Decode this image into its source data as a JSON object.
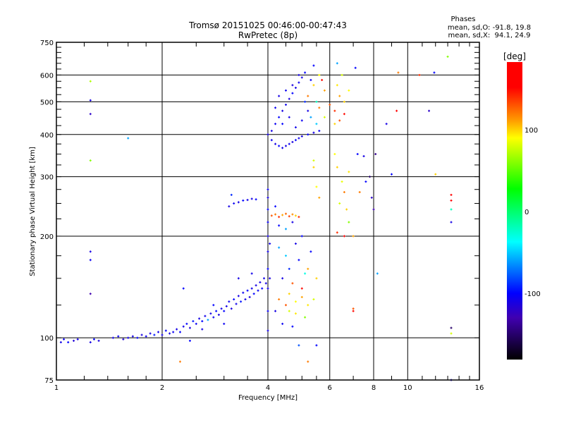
{
  "chart_data": {
    "type": "scatter",
    "title": "Tromsø 20151025 00:46:00-00:47:43",
    "subtitle": "RwPretec (8p)",
    "xlabel": "Frequency [MHz]",
    "ylabel": "Stationary phase Virtual Height [km]",
    "xscale": "log",
    "yscale": "log",
    "xlim": [
      1,
      16
    ],
    "ylim": [
      75,
      750
    ],
    "xticks": [
      "1",
      "2",
      "4",
      "6",
      "8",
      "10",
      "16"
    ],
    "xtick_values": [
      1,
      2,
      4,
      6,
      8,
      10,
      16
    ],
    "yticks": [
      "75",
      "100",
      "200",
      "300",
      "400",
      "500",
      "600",
      "750"
    ],
    "ytick_values": [
      75,
      100,
      200,
      300,
      400,
      500,
      600,
      750
    ],
    "grid_x": [
      2,
      4,
      6,
      8,
      10
    ],
    "grid_y": [
      100,
      200,
      300,
      400,
      500,
      600
    ],
    "grid": true,
    "legend": {
      "title": "Phases",
      "lines": [
        "mean, sd,O: -91.8, 19.8",
        "mean, sd,X:  94.1, 24.9"
      ],
      "placement": "top-right"
    },
    "colorbar": {
      "label": "[deg]",
      "range": [
        -181,
        183
      ],
      "ticks": [
        "100",
        "0",
        "-100"
      ],
      "tick_values": [
        100,
        0,
        -100
      ],
      "stops": [
        {
          "value": 183,
          "color": "#ff0000"
        },
        {
          "value": 152,
          "color": "#ff0000"
        },
        {
          "value": 112,
          "color": "#ff9a00"
        },
        {
          "value": 90,
          "color": "#ffff00"
        },
        {
          "value": 28,
          "color": "#00ff00"
        },
        {
          "value": -37,
          "color": "#00ffff"
        },
        {
          "value": -100,
          "color": "#0000ff"
        },
        {
          "value": -130,
          "color": "#4000b0"
        },
        {
          "value": -181,
          "color": "#000000"
        }
      ]
    },
    "point_fields": [
      "frequency_MHz",
      "height_km",
      "phase_deg"
    ],
    "points": [
      [
        1.03,
        97,
        -110
      ],
      [
        1.05,
        99,
        -105
      ],
      [
        1.08,
        97,
        -100
      ],
      [
        1.12,
        98,
        -115
      ],
      [
        1.15,
        99,
        -108
      ],
      [
        1.25,
        97,
        -110
      ],
      [
        1.28,
        99,
        -100
      ],
      [
        1.32,
        98,
        -112
      ],
      [
        1.45,
        100,
        -110
      ],
      [
        1.5,
        101,
        -105
      ],
      [
        1.55,
        99,
        -115
      ],
      [
        1.6,
        100,
        -108
      ],
      [
        1.65,
        101,
        -110
      ],
      [
        1.7,
        100,
        -100
      ],
      [
        1.75,
        102,
        -112
      ],
      [
        1.8,
        101,
        -105
      ],
      [
        1.85,
        103,
        -110
      ],
      [
        1.9,
        102,
        -95
      ],
      [
        1.95,
        104,
        -108
      ],
      [
        2.0,
        102,
        -110
      ],
      [
        2.05,
        105,
        -100
      ],
      [
        2.1,
        103,
        -112
      ],
      [
        2.15,
        104,
        -105
      ],
      [
        2.2,
        106,
        -110
      ],
      [
        2.25,
        104,
        -100
      ],
      [
        2.3,
        108,
        -108
      ],
      [
        2.35,
        110,
        -100
      ],
      [
        2.4,
        107,
        -112
      ],
      [
        2.45,
        112,
        -95
      ],
      [
        2.5,
        110,
        -105
      ],
      [
        2.55,
        114,
        -110
      ],
      [
        2.6,
        112,
        -100
      ],
      [
        2.65,
        116,
        -108
      ],
      [
        2.7,
        113,
        -60
      ],
      [
        2.75,
        118,
        -110
      ],
      [
        2.8,
        115,
        -105
      ],
      [
        2.85,
        120,
        -100
      ],
      [
        2.9,
        117,
        -112
      ],
      [
        2.95,
        122,
        -108
      ],
      [
        3.0,
        120,
        -100
      ],
      [
        3.05,
        124,
        -110
      ],
      [
        3.1,
        128,
        -105
      ],
      [
        3.15,
        122,
        -112
      ],
      [
        3.2,
        130,
        -100
      ],
      [
        3.25,
        126,
        -108
      ],
      [
        3.3,
        133,
        -110
      ],
      [
        3.35,
        128,
        -95
      ],
      [
        3.4,
        136,
        -105
      ],
      [
        3.45,
        130,
        -110
      ],
      [
        3.5,
        138,
        -100
      ],
      [
        3.55,
        132,
        -112
      ],
      [
        3.6,
        140,
        -108
      ],
      [
        3.65,
        135,
        -100
      ],
      [
        3.7,
        143,
        -110
      ],
      [
        3.75,
        138,
        -105
      ],
      [
        3.8,
        146,
        -110
      ],
      [
        3.85,
        140,
        -100
      ],
      [
        3.9,
        150,
        -108
      ],
      [
        3.95,
        145,
        -110
      ],
      [
        2.4,
        98,
        -100
      ],
      [
        2.6,
        106,
        -110
      ],
      [
        2.8,
        125,
        -100
      ],
      [
        3.0,
        110,
        -105
      ],
      [
        3.3,
        150,
        -110
      ],
      [
        3.6,
        155,
        -108
      ],
      [
        2.3,
        140,
        -100
      ],
      [
        2.25,
        85,
        120
      ],
      [
        1.25,
        180,
        -110
      ],
      [
        1.25,
        170,
        -105
      ],
      [
        1.25,
        135,
        -130
      ],
      [
        1.25,
        575,
        70
      ],
      [
        1.25,
        505,
        -110
      ],
      [
        1.25,
        460,
        -120
      ],
      [
        1.25,
        335,
        60
      ],
      [
        1.6,
        390,
        -60
      ],
      [
        3.1,
        245,
        -110
      ],
      [
        3.2,
        250,
        -105
      ],
      [
        3.3,
        252,
        -110
      ],
      [
        3.4,
        255,
        -100
      ],
      [
        3.5,
        256,
        -108
      ],
      [
        3.6,
        258,
        -110
      ],
      [
        3.7,
        257,
        -100
      ],
      [
        3.15,
        265,
        -90
      ],
      [
        4.0,
        105,
        -110
      ],
      [
        4.0,
        120,
        -105
      ],
      [
        4.0,
        140,
        -110
      ],
      [
        4.0,
        160,
        -100
      ],
      [
        4.0,
        180,
        -108
      ],
      [
        4.0,
        200,
        -110
      ],
      [
        4.0,
        220,
        -105
      ],
      [
        4.0,
        240,
        -100
      ],
      [
        4.0,
        260,
        -110
      ],
      [
        4.0,
        275,
        -105
      ],
      [
        4.05,
        190,
        -108
      ],
      [
        4.05,
        150,
        -112
      ],
      [
        4.1,
        230,
        130
      ],
      [
        4.2,
        232,
        120
      ],
      [
        4.3,
        228,
        140
      ],
      [
        4.4,
        231,
        110
      ],
      [
        4.5,
        233,
        125
      ],
      [
        4.6,
        229,
        135
      ],
      [
        4.7,
        232,
        115
      ],
      [
        4.8,
        230,
        100
      ],
      [
        4.9,
        228,
        140
      ],
      [
        4.3,
        215,
        -100
      ],
      [
        4.5,
        210,
        -60
      ],
      [
        4.7,
        220,
        -110
      ],
      [
        4.2,
        245,
        -100
      ],
      [
        4.3,
        130,
        120
      ],
      [
        4.5,
        125,
        130
      ],
      [
        4.6,
        135,
        100
      ],
      [
        4.8,
        128,
        90
      ],
      [
        5.0,
        132,
        110
      ],
      [
        5.2,
        125,
        95
      ],
      [
        5.4,
        130,
        80
      ],
      [
        4.4,
        150,
        -110
      ],
      [
        4.6,
        160,
        -90
      ],
      [
        4.9,
        170,
        -100
      ],
      [
        5.1,
        155,
        -30
      ],
      [
        5.3,
        180,
        -100
      ],
      [
        4.7,
        145,
        130
      ],
      [
        5.0,
        140,
        150
      ],
      [
        5.2,
        160,
        110
      ],
      [
        4.5,
        175,
        -50
      ],
      [
        5.5,
        150,
        100
      ],
      [
        4.6,
        120,
        80
      ],
      [
        4.8,
        118,
        95
      ],
      [
        5.1,
        115,
        60
      ],
      [
        4.2,
        120,
        -110
      ],
      [
        4.4,
        110,
        -105
      ],
      [
        4.7,
        108,
        -100
      ],
      [
        4.9,
        95,
        -80
      ],
      [
        5.2,
        85,
        120
      ],
      [
        5.5,
        95,
        -100
      ],
      [
        5.0,
        200,
        -100
      ],
      [
        4.8,
        190,
        -110
      ],
      [
        4.3,
        185,
        -60
      ],
      [
        4.0,
        400,
        -110
      ],
      [
        4.1,
        385,
        -105
      ],
      [
        4.2,
        375,
        -110
      ],
      [
        4.3,
        370,
        -100
      ],
      [
        4.4,
        365,
        -108
      ],
      [
        4.5,
        370,
        -110
      ],
      [
        4.6,
        375,
        -105
      ],
      [
        4.7,
        380,
        -112
      ],
      [
        4.8,
        385,
        -100
      ],
      [
        4.9,
        390,
        -108
      ],
      [
        5.0,
        395,
        -110
      ],
      [
        5.2,
        400,
        -100
      ],
      [
        5.4,
        405,
        -110
      ],
      [
        5.6,
        410,
        -105
      ],
      [
        4.1,
        410,
        -110
      ],
      [
        4.2,
        430,
        -105
      ],
      [
        4.3,
        450,
        -100
      ],
      [
        4.4,
        470,
        -110
      ],
      [
        4.5,
        490,
        -108
      ],
      [
        4.6,
        510,
        -112
      ],
      [
        4.7,
        530,
        -100
      ],
      [
        4.8,
        550,
        -110
      ],
      [
        4.9,
        570,
        -105
      ],
      [
        5.0,
        590,
        -110
      ],
      [
        5.1,
        610,
        -100
      ],
      [
        4.5,
        540,
        -105
      ],
      [
        4.7,
        560,
        -112
      ],
      [
        4.3,
        520,
        -110
      ],
      [
        4.2,
        480,
        -105
      ],
      [
        4.4,
        430,
        -100
      ],
      [
        4.6,
        450,
        -110
      ],
      [
        4.8,
        420,
        -108
      ],
      [
        5.0,
        440,
        -105
      ],
      [
        5.2,
        470,
        -110
      ],
      [
        5.1,
        500,
        -90
      ],
      [
        5.3,
        450,
        -60
      ],
      [
        5.5,
        430,
        -50
      ],
      [
        4.9,
        600,
        -110
      ],
      [
        5.4,
        640,
        -100
      ],
      [
        5.3,
        580,
        -105
      ],
      [
        5.2,
        520,
        120
      ],
      [
        5.4,
        560,
        100
      ],
      [
        5.6,
        600,
        90
      ],
      [
        5.8,
        540,
        110
      ],
      [
        6.0,
        490,
        130
      ],
      [
        6.2,
        470,
        140
      ],
      [
        6.4,
        520,
        110
      ],
      [
        6.6,
        500,
        100
      ],
      [
        6.8,
        540,
        90
      ],
      [
        6.6,
        460,
        150
      ],
      [
        6.4,
        440,
        130
      ],
      [
        6.2,
        430,
        100
      ],
      [
        5.8,
        450,
        80
      ],
      [
        5.6,
        480,
        120
      ],
      [
        6.3,
        560,
        95
      ],
      [
        6.5,
        600,
        80
      ],
      [
        5.5,
        500,
        -20
      ],
      [
        5.7,
        580,
        150
      ],
      [
        5.4,
        335,
        80
      ],
      [
        5.4,
        320,
        100
      ],
      [
        5.5,
        280,
        90
      ],
      [
        5.6,
        260,
        110
      ],
      [
        6.2,
        350,
        90
      ],
      [
        6.3,
        320,
        100
      ],
      [
        6.5,
        290,
        85
      ],
      [
        6.6,
        270,
        120
      ],
      [
        6.8,
        310,
        95
      ],
      [
        6.4,
        250,
        80
      ],
      [
        6.7,
        240,
        100
      ],
      [
        6.3,
        205,
        140
      ],
      [
        6.6,
        200,
        160
      ],
      [
        7.0,
        200,
        110
      ],
      [
        6.8,
        220,
        60
      ],
      [
        7.2,
        350,
        -100
      ],
      [
        7.5,
        345,
        -110
      ],
      [
        7.3,
        270,
        120
      ],
      [
        7.6,
        290,
        -100
      ],
      [
        7.8,
        300,
        -150
      ],
      [
        7.9,
        260,
        -120
      ],
      [
        7.0,
        120,
        150
      ],
      [
        7.0,
        122,
        130
      ],
      [
        8.0,
        240,
        -130
      ],
      [
        8.2,
        155,
        -60
      ],
      [
        8.7,
        430,
        -110
      ],
      [
        9.0,
        305,
        -100
      ],
      [
        9.3,
        470,
        160
      ],
      [
        9.4,
        610,
        120
      ],
      [
        10.8,
        600,
        140
      ],
      [
        11.5,
        470,
        -120
      ],
      [
        12.0,
        305,
        100
      ],
      [
        13.0,
        680,
        60
      ],
      [
        13.3,
        265,
        160
      ],
      [
        13.3,
        255,
        160
      ],
      [
        13.3,
        240,
        -20
      ],
      [
        13.3,
        220,
        -110
      ],
      [
        13.3,
        107,
        -150
      ],
      [
        13.3,
        103,
        80
      ],
      [
        13.3,
        75,
        -110
      ],
      [
        11.9,
        610,
        -100
      ],
      [
        8.1,
        350,
        -140
      ],
      [
        7.1,
        630,
        -100
      ],
      [
        6.3,
        650,
        -60
      ]
    ]
  }
}
